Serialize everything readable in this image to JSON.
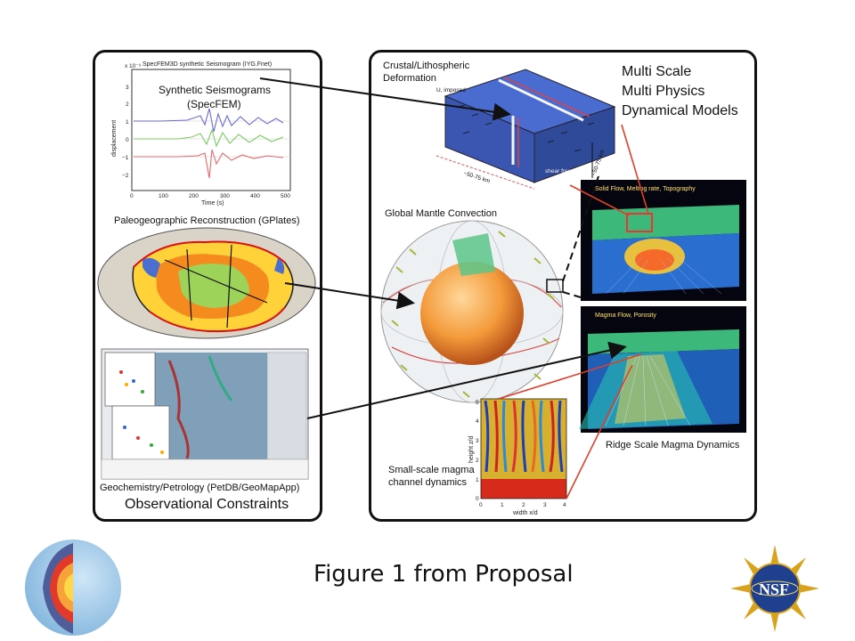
{
  "slide": {
    "title": "Figure 1 from Proposal",
    "nsf_logo_text": "NSF"
  },
  "left_panel": {
    "seismogram": {
      "plot_title": "SpecFEM3D synthetic Seismogram (IYG.Fnet)",
      "exponent": "x 10⁻³",
      "overlay_label_line1": "Synthetic Seismograms",
      "overlay_label_line2": "(SpecFEM)",
      "ylabel": "displacement",
      "xlabel": "Time (s)",
      "yticks": [
        "3",
        "2",
        "1",
        "0",
        "−1",
        "−2"
      ],
      "xticks": [
        "0",
        "100",
        "200",
        "300",
        "400",
        "500"
      ],
      "trace_colors": [
        "#6a6ad8",
        "#7ccc5e",
        "#e46a6a"
      ]
    },
    "paleogeographic_label": "Paleogeographic Reconstruction (GPlates)",
    "geochem_label": "Geochemistry/Petrology (PetDB/GeoMapApp)",
    "observational_label": "Observational Constraints"
  },
  "right_panel": {
    "crustal_label_line1": "Crustal/Lithospheric",
    "crustal_label_line2": "Deformation",
    "models_label_line1": "Multi Scale",
    "models_label_line2": "Multi Physics",
    "models_label_line3": "Dynamical Models",
    "mantle_label": "Global Mantle Convection",
    "solid_flow_label": "Solid Flow, Melting rate, Topography",
    "magma_flow_label": "Magma Flow, Porosity",
    "ridge_label": "Ridge Scale Magma Dynamics",
    "channel_label_line1": "Small-scale magma",
    "channel_label_line2": "channel dynamics",
    "channel_plot": {
      "ylabel": "height z/d",
      "xlabel": "width x/d",
      "xticks": [
        "0",
        "1",
        "2",
        "3",
        "4"
      ],
      "yticks": [
        "0",
        "1",
        "2",
        "3",
        "4",
        "5"
      ]
    },
    "block_annotations": {
      "u_imposed": "U, imposed",
      "dimension_x": "~50-75 km",
      "dimension_z": "~50-75 km",
      "shear_free": "shear free"
    }
  }
}
